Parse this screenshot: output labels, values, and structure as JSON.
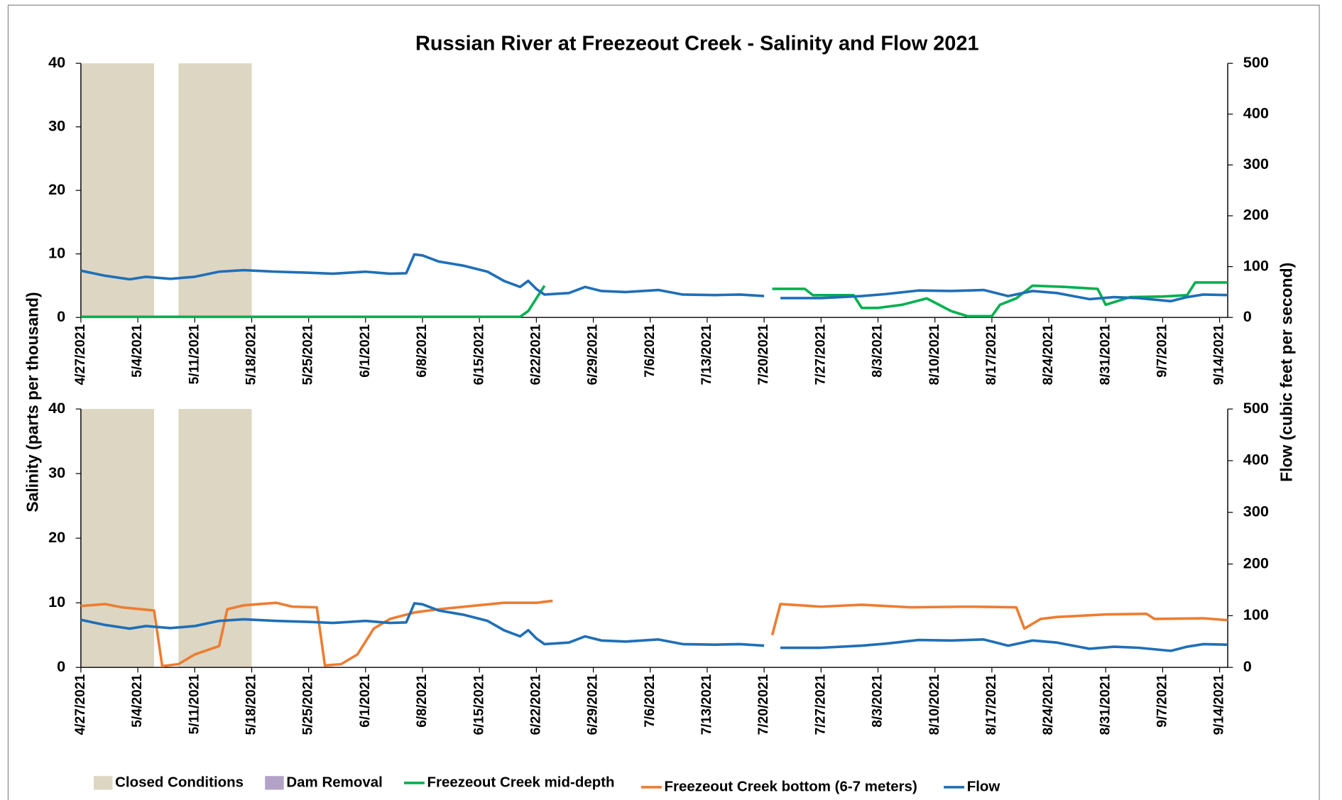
{
  "chart_data": [
    {
      "type": "line",
      "title": "Russian River at Freezeout Creek - Salinity and Flow 2021",
      "ylabel": "Salinity (parts per thousand)",
      "y2label": "Flow (cubic feet per second)",
      "xlim": [
        "2021-04-27",
        "2021-09-15"
      ],
      "ylim": [
        0,
        40
      ],
      "yticks": [
        0,
        10,
        20,
        30,
        40
      ],
      "y2lim": [
        0,
        500
      ],
      "y2ticks": [
        0,
        100,
        200,
        300,
        400,
        500
      ],
      "xticks": [
        {
          "value": "2021-04-27",
          "label": "4/27/2021"
        },
        {
          "value": "2021-05-04",
          "label": "5/4/2021"
        },
        {
          "value": "2021-05-11",
          "label": "5/11/2021"
        },
        {
          "value": "2021-05-18",
          "label": "5/18/2021"
        },
        {
          "value": "2021-05-25",
          "label": "5/25/2021"
        },
        {
          "value": "2021-06-01",
          "label": "6/1/2021"
        },
        {
          "value": "2021-06-08",
          "label": "6/8/2021"
        },
        {
          "value": "2021-06-15",
          "label": "6/15/2021"
        },
        {
          "value": "2021-06-22",
          "label": "6/22/2021"
        },
        {
          "value": "2021-06-29",
          "label": "6/29/2021"
        },
        {
          "value": "2021-07-06",
          "label": "7/6/2021"
        },
        {
          "value": "2021-07-13",
          "label": "7/13/2021"
        },
        {
          "value": "2021-07-20",
          "label": "7/20/2021"
        },
        {
          "value": "2021-07-27",
          "label": "7/27/2021"
        },
        {
          "value": "2021-08-03",
          "label": "8/3/2021"
        },
        {
          "value": "2021-08-10",
          "label": "8/10/2021"
        },
        {
          "value": "2021-08-17",
          "label": "8/17/2021"
        },
        {
          "value": "2021-08-24",
          "label": "8/24/2021"
        },
        {
          "value": "2021-08-31",
          "label": "8/31/2021"
        },
        {
          "value": "2021-09-07",
          "label": "9/7/2021"
        },
        {
          "value": "2021-09-14",
          "label": "9/14/2021"
        }
      ],
      "shaded": {
        "name": "Closed Conditions",
        "color": "#ddd6c3",
        "periods": [
          [
            "2021-04-27",
            "2021-05-06"
          ],
          [
            "2021-05-09",
            "2021-05-18"
          ]
        ]
      },
      "legend_only": [
        {
          "name": "Dam Removal",
          "color": "#b3a2c7"
        }
      ],
      "series": [
        {
          "name": "Freezeout Creek mid-depth",
          "color": "#00b050",
          "x": [
            "2021-04-27",
            "2021-06-20",
            "2021-06-21",
            "2021-06-22",
            "2021-06-23",
            "2021-07-05",
            "2021-07-21",
            "2021-07-25",
            "2021-07-26",
            "2021-07-31",
            "2021-08-01",
            "2021-08-03",
            "2021-08-06",
            "2021-08-09",
            "2021-08-12",
            "2021-08-14",
            "2021-08-17",
            "2021-08-18",
            "2021-08-20",
            "2021-08-22",
            "2021-08-26",
            "2021-08-30",
            "2021-08-31",
            "2021-09-03",
            "2021-09-07",
            "2021-09-10",
            "2021-09-11",
            "2021-09-15"
          ],
          "values": [
            0.1,
            0.1,
            1,
            3,
            5,
            null,
            4.5,
            4.5,
            3.5,
            3.5,
            1.5,
            1.5,
            2,
            3,
            1,
            0.2,
            0.2,
            2,
            3,
            5,
            4.8,
            4.5,
            2,
            3.2,
            3.3,
            3.5,
            5.5,
            5.5
          ]
        },
        {
          "name": "Flow",
          "color": "#1f6fb7",
          "axis": "y2",
          "x": [
            "2021-04-27",
            "2021-04-30",
            "2021-05-03",
            "2021-05-05",
            "2021-05-08",
            "2021-05-11",
            "2021-05-14",
            "2021-05-17",
            "2021-05-21",
            "2021-05-25",
            "2021-05-28",
            "2021-06-01",
            "2021-06-04",
            "2021-06-06",
            "2021-06-07",
            "2021-06-08",
            "2021-06-10",
            "2021-06-13",
            "2021-06-16",
            "2021-06-18",
            "2021-06-20",
            "2021-06-21",
            "2021-06-22",
            "2021-06-23",
            "2021-06-26",
            "2021-06-28",
            "2021-06-30",
            "2021-07-03",
            "2021-07-07",
            "2021-07-10",
            "2021-07-14",
            "2021-07-17",
            "2021-07-20",
            "2021-07-21",
            "2021-07-22",
            "2021-07-27",
            "2021-08-01",
            "2021-08-04",
            "2021-08-08",
            "2021-08-12",
            "2021-08-16",
            "2021-08-19",
            "2021-08-22",
            "2021-08-25",
            "2021-08-29",
            "2021-09-01",
            "2021-09-04",
            "2021-09-08",
            "2021-09-10",
            "2021-09-12",
            "2021-09-15"
          ],
          "values": [
            92,
            82,
            75,
            80,
            76,
            80,
            90,
            93,
            90,
            88,
            86,
            90,
            86,
            87,
            124,
            122,
            110,
            102,
            90,
            72,
            60,
            72,
            56,
            45,
            48,
            60,
            52,
            50,
            54,
            45,
            44,
            45,
            42,
            null,
            38,
            38,
            42,
            46,
            53,
            52,
            54,
            42,
            52,
            48,
            36,
            40,
            38,
            32,
            40,
            45,
            44
          ]
        }
      ]
    },
    {
      "type": "line",
      "ylim": [
        0,
        40
      ],
      "yticks": [
        0,
        10,
        20,
        30,
        40
      ],
      "y2lim": [
        0,
        500
      ],
      "y2ticks": [
        0,
        100,
        200,
        300,
        400,
        500
      ],
      "xlim": [
        "2021-04-27",
        "2021-09-15"
      ],
      "xticks": [
        {
          "value": "2021-04-27",
          "label": "4/27/2021"
        },
        {
          "value": "2021-05-04",
          "label": "5/4/2021"
        },
        {
          "value": "2021-05-11",
          "label": "5/11/2021"
        },
        {
          "value": "2021-05-18",
          "label": "5/18/2021"
        },
        {
          "value": "2021-05-25",
          "label": "5/25/2021"
        },
        {
          "value": "2021-06-01",
          "label": "6/1/2021"
        },
        {
          "value": "2021-06-08",
          "label": "6/8/2021"
        },
        {
          "value": "2021-06-15",
          "label": "6/15/2021"
        },
        {
          "value": "2021-06-22",
          "label": "6/22/2021"
        },
        {
          "value": "2021-06-29",
          "label": "6/29/2021"
        },
        {
          "value": "2021-07-06",
          "label": "7/6/2021"
        },
        {
          "value": "2021-07-13",
          "label": "7/13/2021"
        },
        {
          "value": "2021-07-20",
          "label": "7/20/2021"
        },
        {
          "value": "2021-07-27",
          "label": "7/27/2021"
        },
        {
          "value": "2021-08-03",
          "label": "8/3/2021"
        },
        {
          "value": "2021-08-10",
          "label": "8/10/2021"
        },
        {
          "value": "2021-08-17",
          "label": "8/17/2021"
        },
        {
          "value": "2021-08-24",
          "label": "8/24/2021"
        },
        {
          "value": "2021-08-31",
          "label": "8/31/2021"
        },
        {
          "value": "2021-09-07",
          "label": "9/7/2021"
        },
        {
          "value": "2021-09-14",
          "label": "9/14/2021"
        }
      ],
      "shaded": {
        "name": "Closed Conditions",
        "color": "#ddd6c3",
        "periods": [
          [
            "2021-04-27",
            "2021-05-06"
          ],
          [
            "2021-05-09",
            "2021-05-18"
          ]
        ]
      },
      "series": [
        {
          "name": "Freezeout Creek bottom (6-7 meters)",
          "color": "#ed7d31",
          "x": [
            "2021-04-27",
            "2021-04-30",
            "2021-05-02",
            "2021-05-06",
            "2021-05-07",
            "2021-05-09",
            "2021-05-11",
            "2021-05-14",
            "2021-05-15",
            "2021-05-17",
            "2021-05-21",
            "2021-05-23",
            "2021-05-26",
            "2021-05-27",
            "2021-05-29",
            "2021-05-31",
            "2021-06-02",
            "2021-06-04",
            "2021-06-07",
            "2021-06-10",
            "2021-06-14",
            "2021-06-18",
            "2021-06-22",
            "2021-06-24",
            "2021-07-05",
            "2021-07-21",
            "2021-07-22",
            "2021-07-27",
            "2021-08-01",
            "2021-08-07",
            "2021-08-14",
            "2021-08-20",
            "2021-08-21",
            "2021-08-23",
            "2021-08-25",
            "2021-08-31",
            "2021-09-05",
            "2021-09-06",
            "2021-09-12",
            "2021-09-15"
          ],
          "values": [
            9.5,
            9.8,
            9.3,
            8.8,
            0.2,
            0.5,
            2,
            3.3,
            9,
            9.6,
            10,
            9.4,
            9.3,
            0.3,
            0.5,
            2,
            6,
            7.5,
            8.5,
            9,
            9.5,
            10,
            10,
            10.3,
            null,
            5,
            9.8,
            9.4,
            9.7,
            9.3,
            9.4,
            9.3,
            6,
            7.5,
            7.8,
            8.2,
            8.3,
            7.5,
            7.6,
            7.3
          ]
        },
        {
          "name": "Flow",
          "color": "#1f6fb7",
          "axis": "y2",
          "x": [
            "2021-04-27",
            "2021-04-30",
            "2021-05-03",
            "2021-05-05",
            "2021-05-08",
            "2021-05-11",
            "2021-05-14",
            "2021-05-17",
            "2021-05-21",
            "2021-05-25",
            "2021-05-28",
            "2021-06-01",
            "2021-06-04",
            "2021-06-06",
            "2021-06-07",
            "2021-06-08",
            "2021-06-10",
            "2021-06-13",
            "2021-06-16",
            "2021-06-18",
            "2021-06-20",
            "2021-06-21",
            "2021-06-22",
            "2021-06-23",
            "2021-06-26",
            "2021-06-28",
            "2021-06-30",
            "2021-07-03",
            "2021-07-07",
            "2021-07-10",
            "2021-07-14",
            "2021-07-17",
            "2021-07-20",
            "2021-07-21",
            "2021-07-22",
            "2021-07-27",
            "2021-08-01",
            "2021-08-04",
            "2021-08-08",
            "2021-08-12",
            "2021-08-16",
            "2021-08-19",
            "2021-08-22",
            "2021-08-25",
            "2021-08-29",
            "2021-09-01",
            "2021-09-04",
            "2021-09-08",
            "2021-09-10",
            "2021-09-12",
            "2021-09-15"
          ],
          "values": [
            92,
            82,
            75,
            80,
            76,
            80,
            90,
            93,
            90,
            88,
            86,
            90,
            86,
            87,
            124,
            122,
            110,
            102,
            90,
            72,
            60,
            72,
            56,
            45,
            48,
            60,
            52,
            50,
            54,
            45,
            44,
            45,
            42,
            null,
            38,
            38,
            42,
            46,
            53,
            52,
            54,
            42,
            52,
            48,
            36,
            40,
            38,
            32,
            40,
            45,
            44
          ]
        }
      ]
    }
  ]
}
